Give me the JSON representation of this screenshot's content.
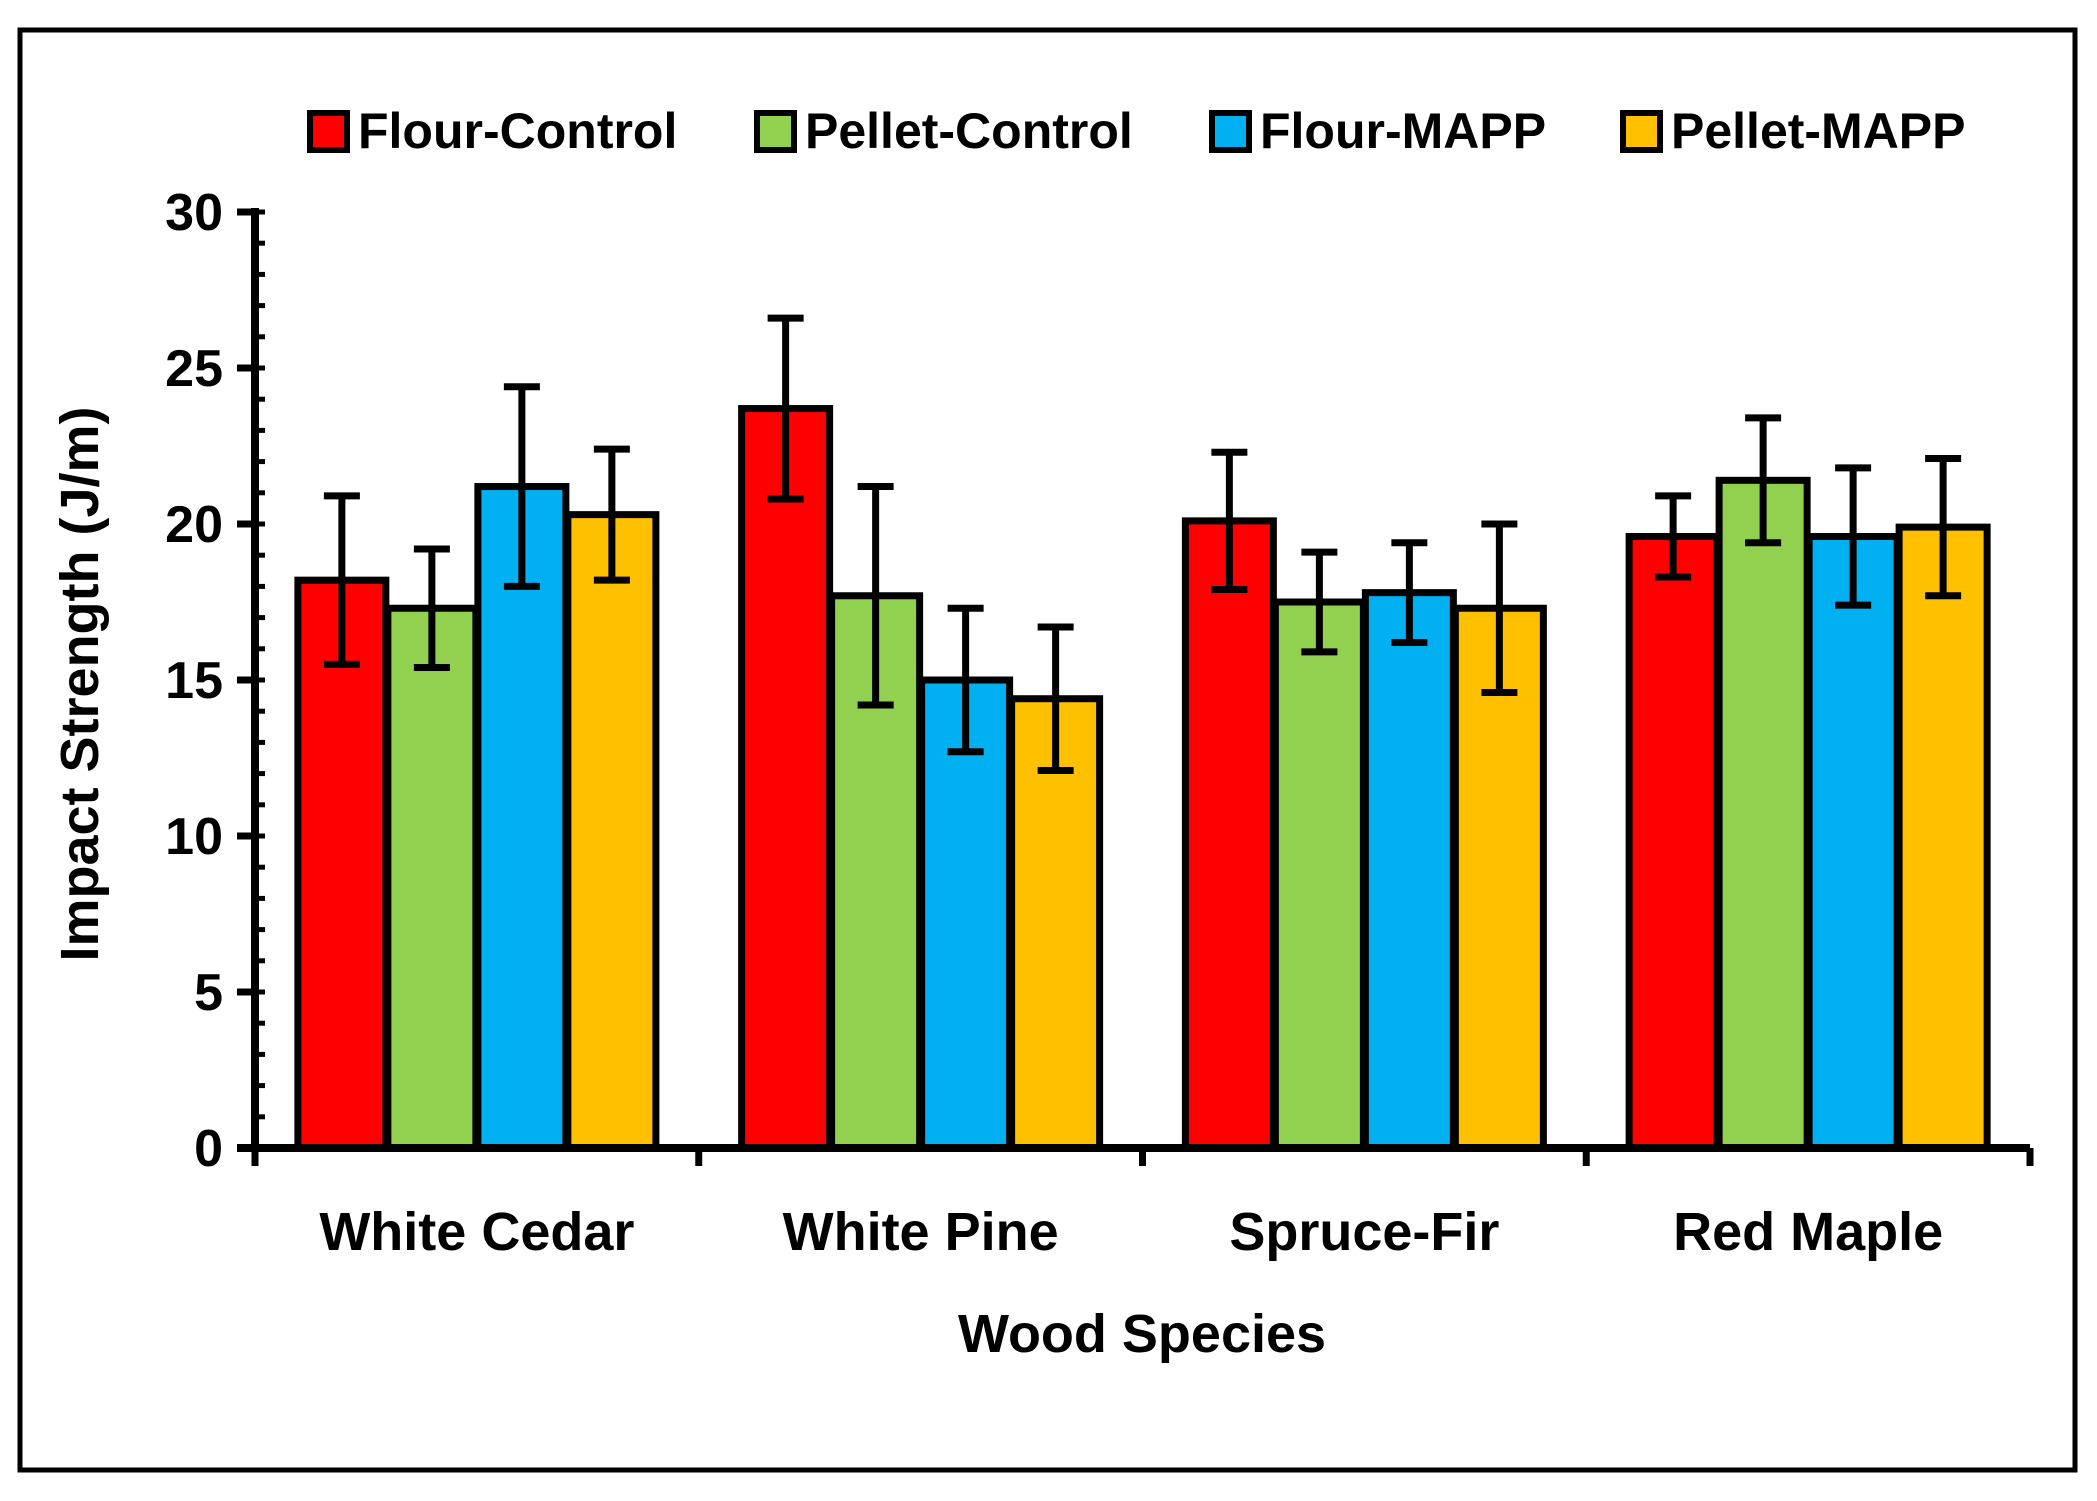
{
  "chart_data": {
    "type": "bar",
    "title": "",
    "xlabel": "Wood Species",
    "ylabel": "Impact Strength (J/m)",
    "ylim": [
      0,
      30
    ],
    "yticks": [
      0,
      5,
      10,
      15,
      20,
      25,
      30
    ],
    "grid": false,
    "legend_position": "top",
    "categories": [
      "White Cedar",
      "White Pine",
      "Spruce-Fir",
      "Red Maple"
    ],
    "series": [
      {
        "name": "Flour-Control",
        "color": "#ff0000",
        "values": [
          18.2,
          23.7,
          20.1,
          19.6
        ],
        "errors": [
          2.7,
          2.9,
          2.2,
          1.3
        ]
      },
      {
        "name": "Pellet-Control",
        "color": "#92d050",
        "values": [
          17.3,
          17.7,
          17.5,
          21.4
        ],
        "errors": [
          1.9,
          3.5,
          1.6,
          2.0
        ]
      },
      {
        "name": "Flour-MAPP",
        "color": "#00b0f0",
        "values": [
          21.2,
          15.0,
          17.8,
          19.6
        ],
        "errors": [
          3.2,
          2.3,
          1.6,
          2.2
        ]
      },
      {
        "name": "Pellet-MAPP",
        "color": "#ffc000",
        "values": [
          20.3,
          14.4,
          17.3,
          19.9
        ],
        "errors": [
          2.1,
          2.3,
          2.7,
          2.2
        ]
      }
    ]
  }
}
